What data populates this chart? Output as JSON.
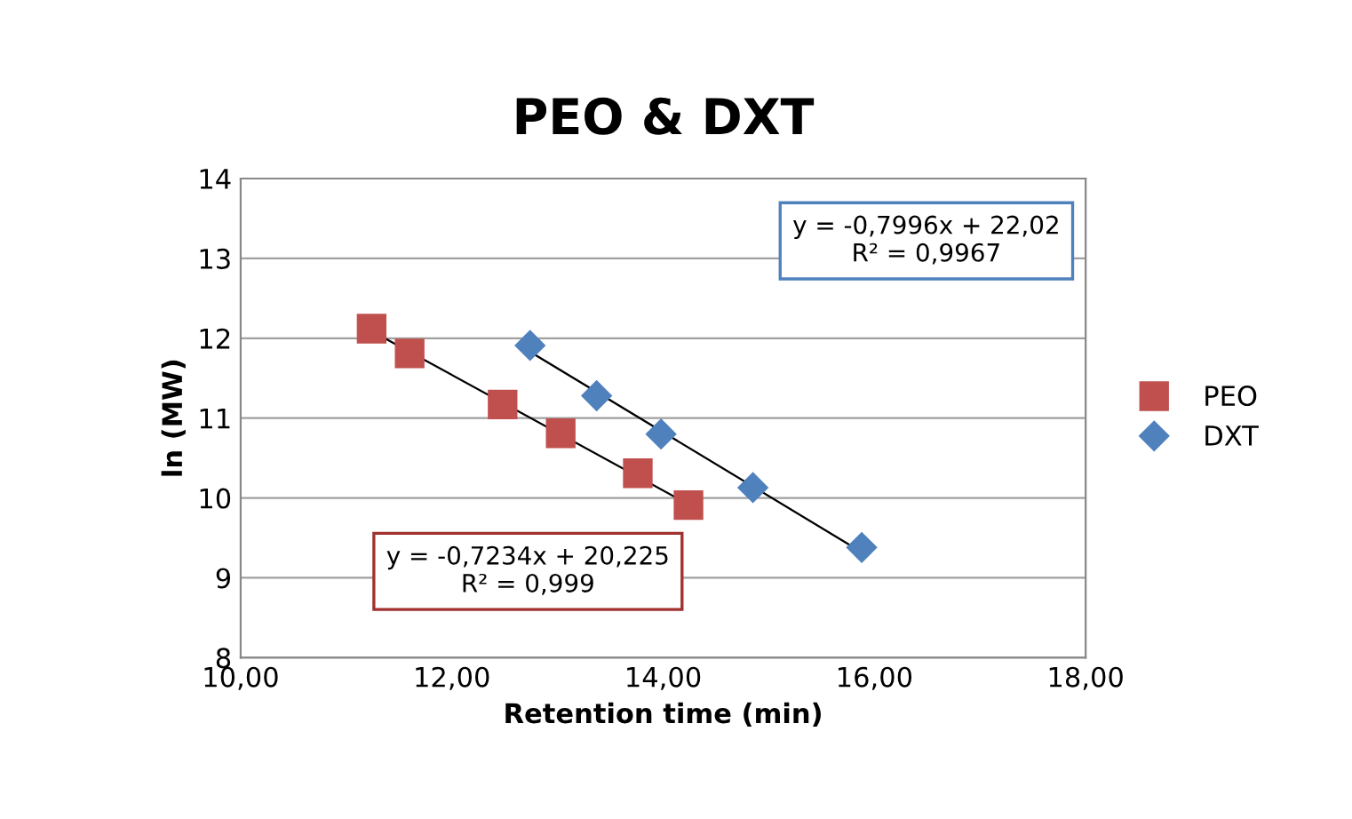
{
  "chart_data": {
    "type": "scatter",
    "title": "PEO & DXT",
    "xlabel": "Retention time (min)",
    "ylabel": "ln (MW)",
    "series": [
      {
        "name": "PEO",
        "color": "#c0504d",
        "marker": "square",
        "x": [
          11.24,
          11.6,
          12.48,
          13.03,
          13.76,
          14.24
        ],
        "values": [
          12.12,
          11.81,
          11.17,
          10.81,
          10.31,
          9.91
        ]
      },
      {
        "name": "DXT",
        "color": "#4f81bd",
        "marker": "diamond",
        "x": [
          12.74,
          13.37,
          13.98,
          14.85,
          15.88
        ],
        "values": [
          11.91,
          11.28,
          10.8,
          10.13,
          9.38
        ]
      },
      {
        "type": "line",
        "color": "#000000",
        "marker": "none",
        "x": [
          11.24,
          14.24
        ],
        "values": [
          12.09,
          9.92
        ]
      },
      {
        "type": "line",
        "color": "#000000",
        "marker": "none",
        "x": [
          12.74,
          15.88
        ],
        "values": [
          11.83,
          9.32
        ]
      }
    ],
    "annotations": [
      "y = -0,7996x + 22,02\nR² = 0,9967",
      "y = -0,7234x + 20,225\nR² = 0,999"
    ],
    "xlim": [
      10,
      18
    ],
    "xticks": [
      {
        "value": 10,
        "label": "10,00"
      },
      {
        "value": 12,
        "label": "12,00"
      },
      {
        "value": 14,
        "label": "14,00"
      },
      {
        "value": 16,
        "label": "16,00"
      },
      {
        "value": 18,
        "label": "18,00"
      }
    ],
    "ylim": [
      8,
      14
    ],
    "yticks": [
      8,
      9,
      10,
      11,
      12,
      13,
      14
    ],
    "grid": "y",
    "legend": "right"
  }
}
